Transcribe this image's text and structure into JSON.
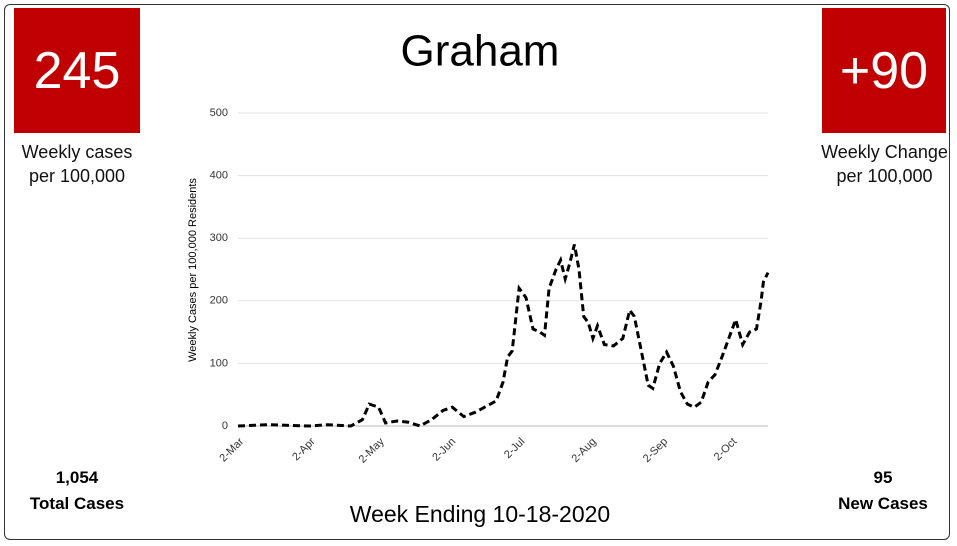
{
  "title_block": {
    "left_box": {
      "value": "245",
      "label": "Weekly cases per 100,000",
      "total": "1,054",
      "total_label": "Total Cases"
    },
    "right_box": {
      "value": "+90",
      "label": "Weekly Change per 100,000",
      "total": "95",
      "total_label": "New Cases"
    },
    "footer": "Week Ending 10-18-2020"
  },
  "chart_data": {
    "type": "line",
    "title": "Graham",
    "y_label": "Weekly Cases per 100,000 Residents",
    "x": [
      "2-Mar",
      "15-Mar",
      "25-Mar",
      "2-Apr",
      "10-Apr",
      "20-Apr",
      "25-Apr",
      "28-Apr",
      "2-May",
      "5-May",
      "10-May",
      "15-May",
      "20-May",
      "25-May",
      "30-May",
      "3-Jun",
      "8-Jun",
      "13-Jun",
      "17-Jun",
      "22-Jun",
      "25-Jun",
      "27-Jun",
      "29-Jun",
      "2-Jul",
      "5-Jul",
      "8-Jul",
      "11-Jul",
      "13-Jul",
      "15-Jul",
      "18-Jul",
      "20-Jul",
      "22-Jul",
      "24-Jul",
      "26-Jul",
      "28-Jul",
      "30-Jul",
      "1-Aug",
      "3-Aug",
      "5-Aug",
      "8-Aug",
      "12-Aug",
      "16-Aug",
      "19-Aug",
      "21-Aug",
      "24-Aug",
      "27-Aug",
      "29-Aug",
      "1-Sep",
      "4-Sep",
      "7-Sep",
      "10-Sep",
      "13-Sep",
      "16-Sep",
      "19-Sep",
      "22-Sep",
      "25-Sep",
      "28-Sep",
      "1-Oct",
      "4-Oct",
      "7-Oct",
      "10-Oct",
      "13-Oct",
      "15-Oct",
      "16-Oct",
      "18-Oct"
    ],
    "series": [
      {
        "name": "Graham",
        "color": "#000000",
        "values": [
          0,
          2,
          1,
          0,
          2,
          0,
          10,
          35,
          30,
          5,
          8,
          6,
          0,
          10,
          25,
          30,
          15,
          22,
          30,
          40,
          70,
          110,
          120,
          220,
          205,
          155,
          150,
          145,
          220,
          250,
          265,
          235,
          260,
          290,
          250,
          175,
          165,
          140,
          160,
          130,
          128,
          140,
          185,
          175,
          120,
          65,
          60,
          100,
          118,
          95,
          55,
          35,
          30,
          38,
          70,
          82,
          110,
          140,
          170,
          130,
          150,
          155,
          200,
          230,
          245
        ]
      }
    ],
    "xlim": [
      "2-Mar",
      "18-Oct"
    ],
    "xticks": [
      "2-Mar",
      "2-Apr",
      "2-May",
      "2-Jun",
      "2-Jul",
      "2-Aug",
      "2-Sep",
      "2-Oct"
    ],
    "ylim": [
      0,
      500
    ],
    "yticks": [
      0,
      100,
      200,
      300,
      400,
      500
    ],
    "grid": true
  }
}
